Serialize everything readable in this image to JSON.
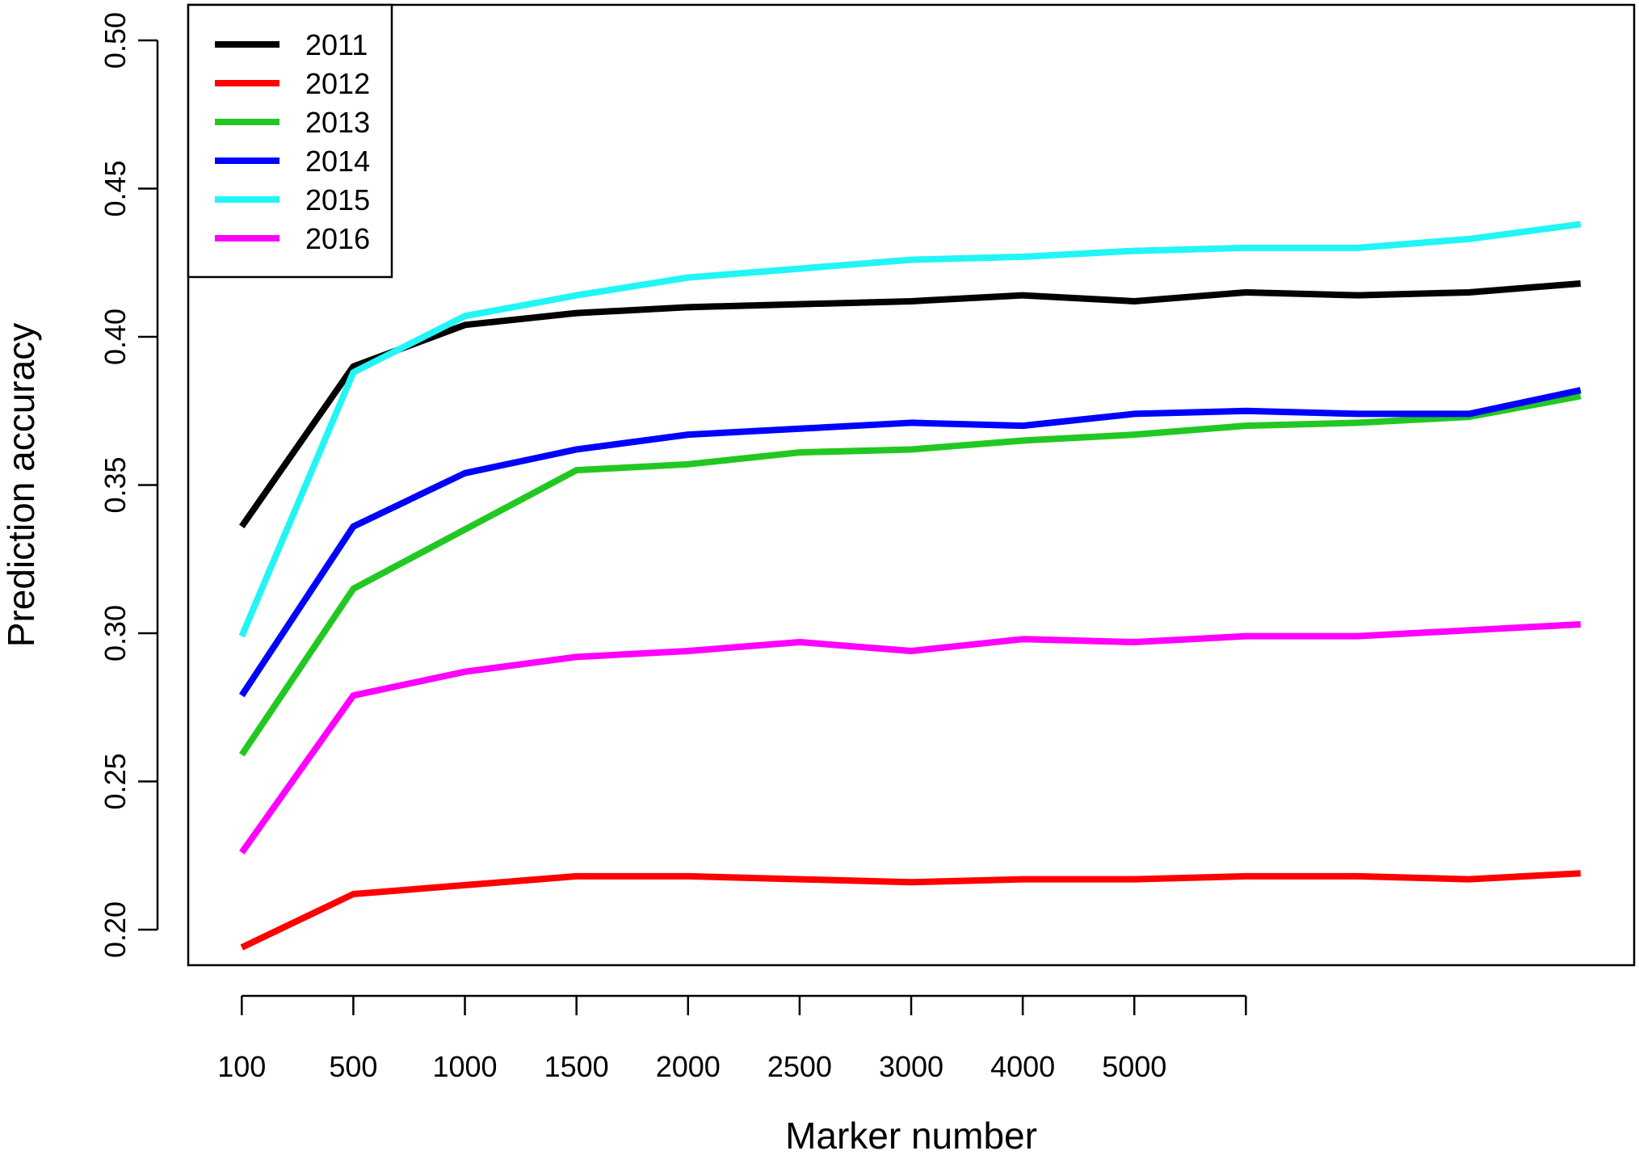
{
  "chart_data": {
    "type": "line",
    "title": "",
    "xlabel": "Marker number",
    "ylabel": "Prediction accuracy",
    "x_tick_labels": [
      "100",
      "500",
      "1000",
      "1500",
      "2000",
      "2500",
      "3000",
      "4000",
      "5000",
      ""
    ],
    "x_positions": [
      1,
      2,
      3,
      4,
      5,
      6,
      7,
      8,
      9,
      10,
      11,
      12,
      13
    ],
    "xlim": [
      0.52,
      13.48
    ],
    "ylim": [
      0.188,
      0.512
    ],
    "y_ticks": [
      0.2,
      0.25,
      0.3,
      0.35,
      0.4,
      0.45,
      0.5
    ],
    "y_tick_labels": [
      "0.20",
      "0.25",
      "0.30",
      "0.35",
      "0.40",
      "0.45",
      "0.50"
    ],
    "grid": false,
    "legend_position": "top-left",
    "series": [
      {
        "name": "2011",
        "color": "#000000",
        "values": [
          0.336,
          0.39,
          0.404,
          0.408,
          0.41,
          0.411,
          0.412,
          0.414,
          0.412,
          0.415,
          0.414,
          0.415,
          0.418
        ]
      },
      {
        "name": "2012",
        "color": "#ff0000",
        "values": [
          0.194,
          0.212,
          0.215,
          0.218,
          0.218,
          0.217,
          0.216,
          0.217,
          0.217,
          0.218,
          0.218,
          0.217,
          0.219
        ]
      },
      {
        "name": "2013",
        "color": "#22c822",
        "values": [
          0.259,
          0.315,
          0.335,
          0.355,
          0.357,
          0.361,
          0.362,
          0.365,
          0.367,
          0.37,
          0.371,
          0.373,
          0.38
        ]
      },
      {
        "name": "2014",
        "color": "#0000ff",
        "values": [
          0.279,
          0.336,
          0.354,
          0.362,
          0.367,
          0.369,
          0.371,
          0.37,
          0.374,
          0.375,
          0.374,
          0.374,
          0.382
        ]
      },
      {
        "name": "2015",
        "color": "#22f5f5",
        "values": [
          0.299,
          0.388,
          0.407,
          0.414,
          0.42,
          0.423,
          0.426,
          0.427,
          0.429,
          0.43,
          0.43,
          0.433,
          0.438
        ]
      },
      {
        "name": "2016",
        "color": "#ff00ff",
        "values": [
          0.226,
          0.279,
          0.287,
          0.292,
          0.294,
          0.297,
          0.294,
          0.298,
          0.297,
          0.299,
          0.299,
          0.301,
          0.303
        ]
      }
    ]
  }
}
